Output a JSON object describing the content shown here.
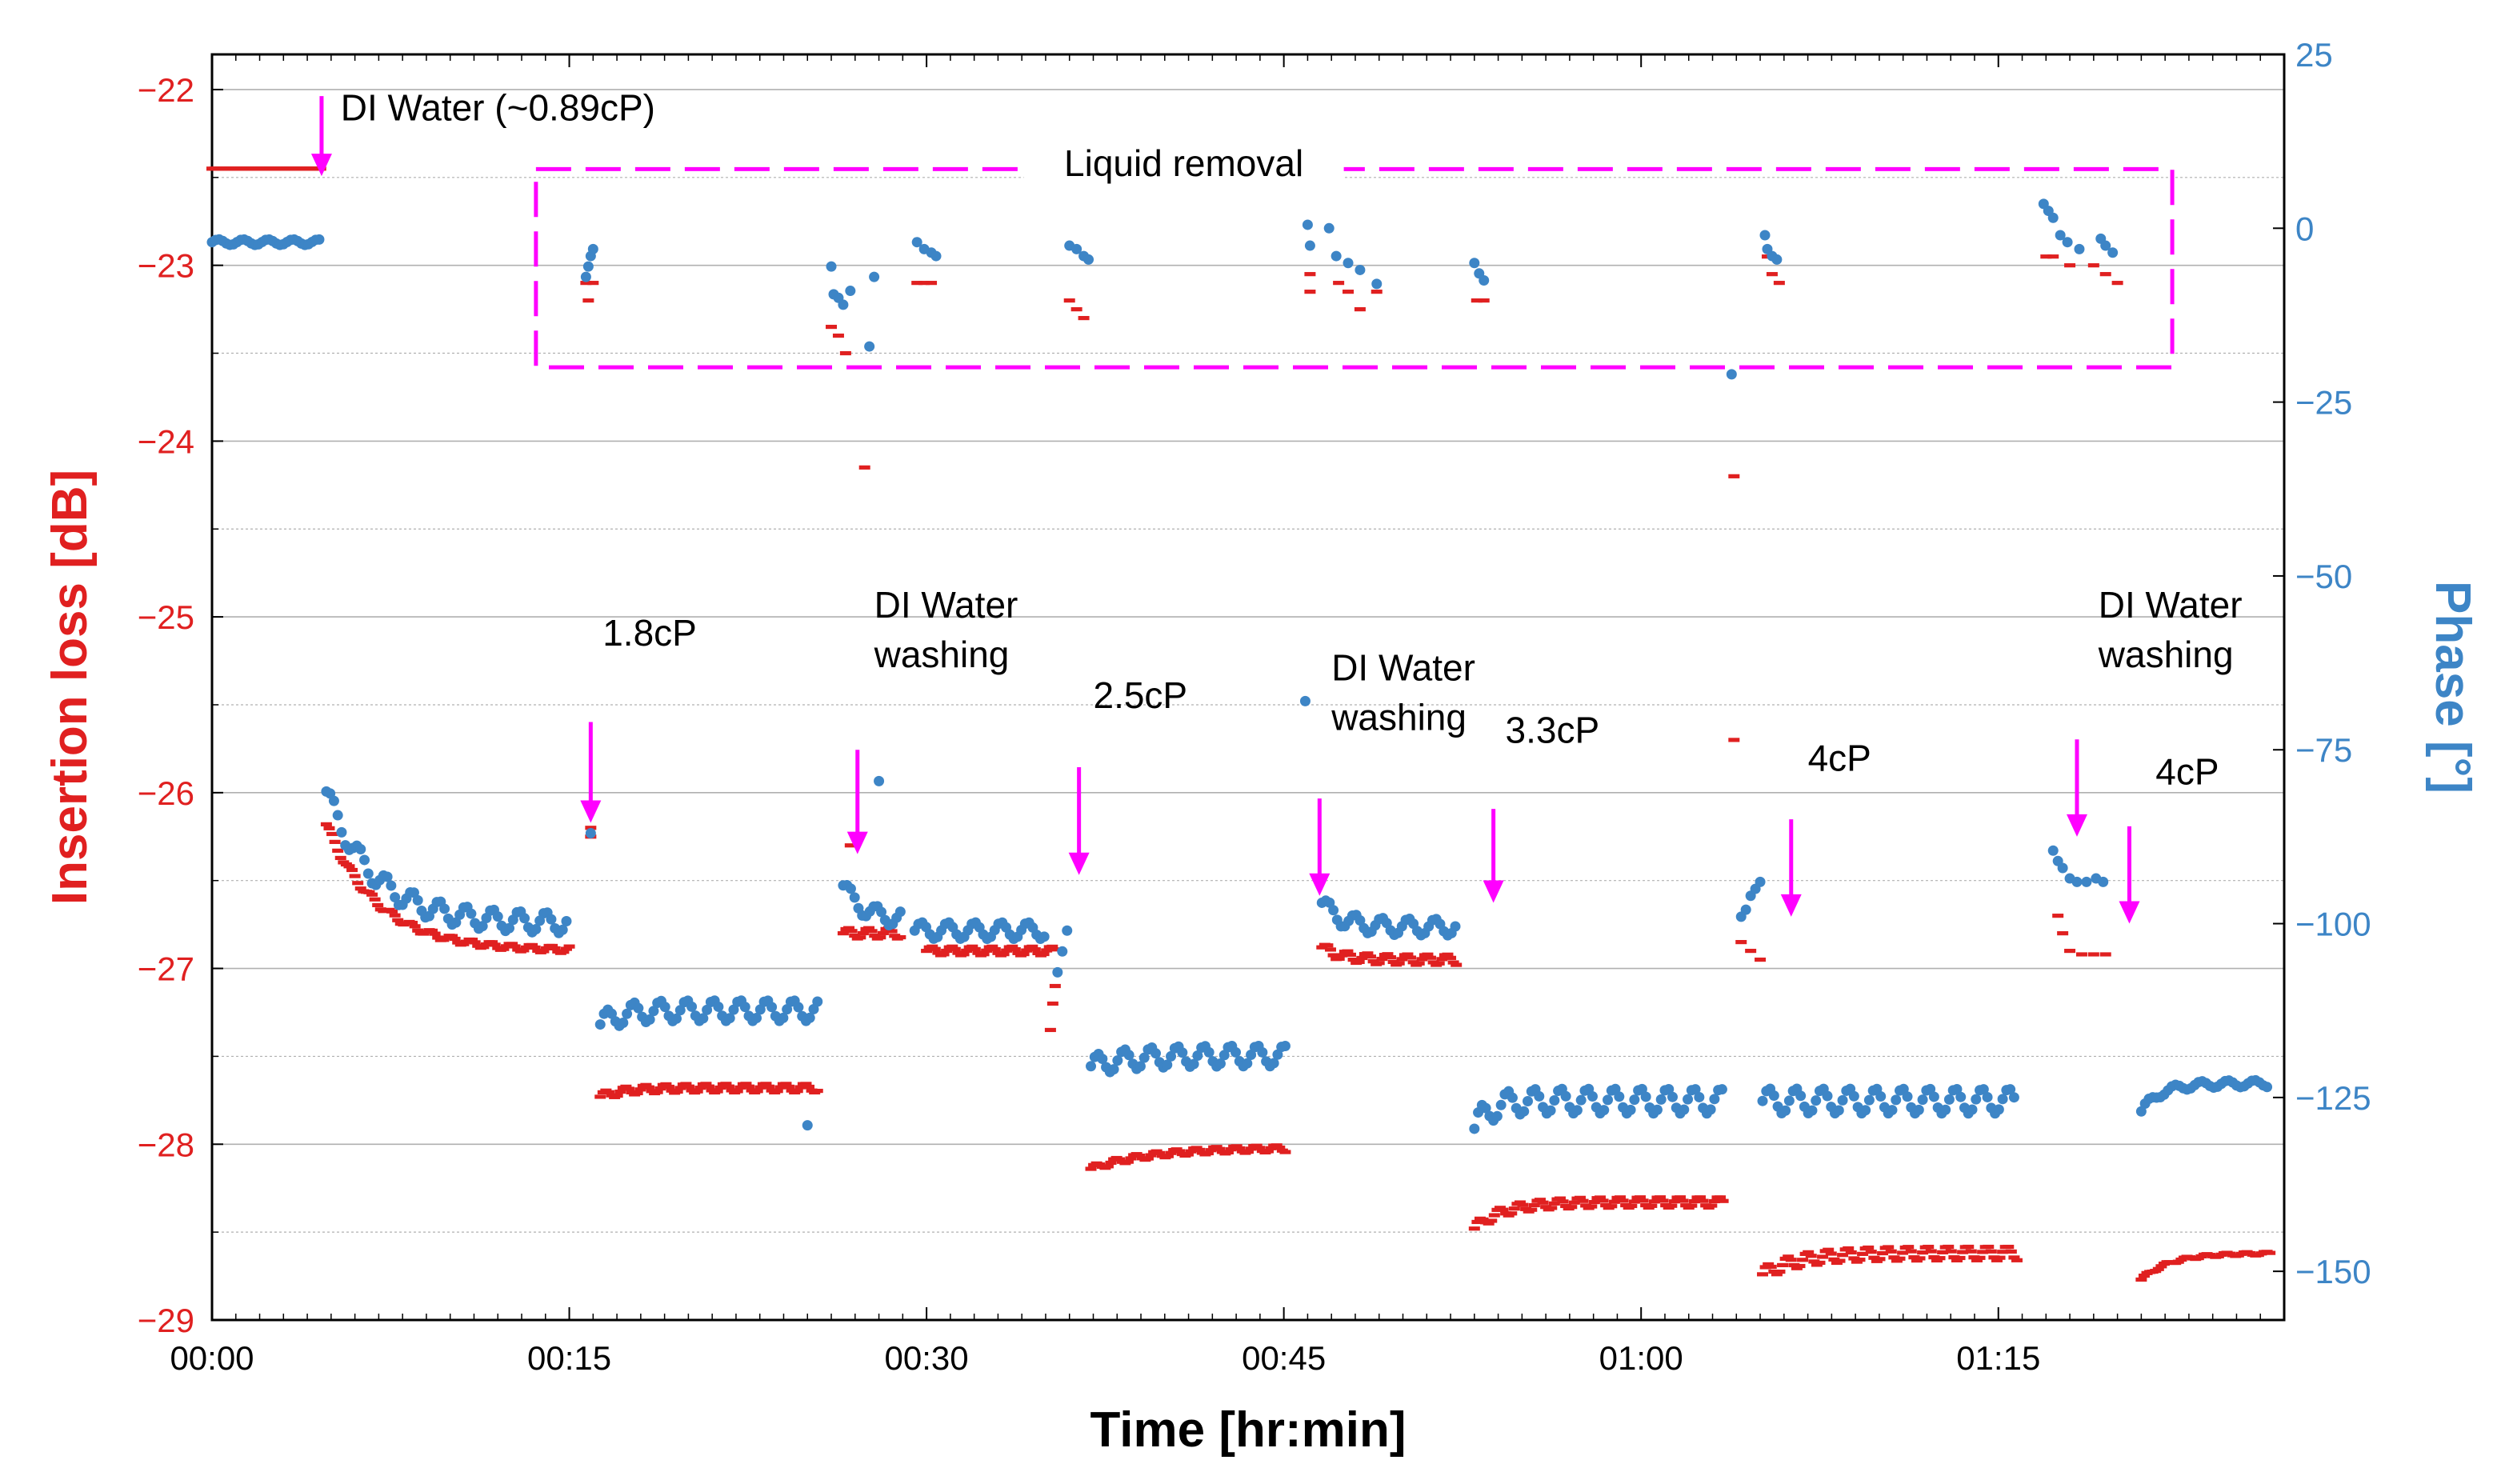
{
  "colors": {
    "insertion_loss": "#e02020",
    "phase": "#3d85c6",
    "annotation": "#ff00ff",
    "grid": "#b0b0b0",
    "axis": "#000000"
  },
  "chart_data": {
    "type": "scatter",
    "xlabel": "Time [hr:min]",
    "ylabel_left": "Insertion loss [dB]",
    "ylabel_right": "Phase [°]",
    "x_unit": "minutes",
    "xlim": [
      0,
      87
    ],
    "ylim_left": [
      -29,
      -21.8
    ],
    "ylim_right": [
      -157,
      25
    ],
    "x_tick_values": [
      0,
      15,
      30,
      45,
      60,
      75
    ],
    "x_tick_labels": [
      "00:00",
      "00:15",
      "00:30",
      "00:45",
      "01:00",
      "01:15"
    ],
    "y_left_tick_values": [
      -22,
      -23,
      -24,
      -25,
      -26,
      -27,
      -28,
      -29
    ],
    "y_left_tick_labels": [
      "−22",
      "−23",
      "−24",
      "−25",
      "−26",
      "−27",
      "−28",
      "−29"
    ],
    "y_right_tick_values": [
      25,
      0,
      -25,
      -50,
      -75,
      -100,
      -125,
      -150
    ],
    "y_right_tick_labels": [
      "25",
      "0",
      "−25",
      "−50",
      "−75",
      "−100",
      "−125",
      "−150"
    ],
    "grid": "horizontal",
    "series": [
      {
        "name": "Insertion loss",
        "axis": "left",
        "marker": "dash",
        "segments": [
          {
            "x0": 0.0,
            "x1": 4.6,
            "base": -22.45,
            "ripple": 0.0,
            "step": 0.12
          },
          {
            "x0": 4.8,
            "x1": 15.0,
            "base": -26.9,
            "decay": 0.72,
            "tau": 2.2,
            "ripple": 0.02,
            "step": 0.12
          },
          {
            "x0": 16.3,
            "x1": 25.5,
            "base": -27.68,
            "decay": -0.05,
            "tau": 1.0,
            "ripple": 0.025,
            "step": 0.12
          },
          {
            "x0": 26.5,
            "x1": 29.0,
            "base": -26.8,
            "decay": 0.0,
            "tau": 1.0,
            "ripple": 0.03,
            "step": 0.12
          },
          {
            "x0": 30.0,
            "x1": 35.4,
            "base": -26.9,
            "decay": 0.0,
            "tau": 1.0,
            "ripple": 0.025,
            "step": 0.12
          },
          {
            "x0": 36.9,
            "x1": 45.1,
            "base": -28.02,
            "decay": -0.12,
            "tau": 2.5,
            "ripple": 0.02,
            "step": 0.12
          },
          {
            "x0": 46.6,
            "x1": 52.3,
            "base": -26.95,
            "decay": 0.07,
            "tau": 0.8,
            "ripple": 0.03,
            "step": 0.12
          },
          {
            "x0": 53.0,
            "x1": 63.5,
            "base": -28.33,
            "decay": -0.15,
            "tau": 1.2,
            "ripple": 0.03,
            "step": 0.12
          },
          {
            "x0": 65.1,
            "x1": 75.8,
            "base": -28.62,
            "decay": -0.12,
            "tau": 1.5,
            "ripple": 0.04,
            "step": 0.12
          },
          {
            "x0": 81.0,
            "x1": 86.4,
            "base": -28.62,
            "decay": -0.15,
            "tau": 1.2,
            "ripple": 0.01,
            "step": 0.12
          }
        ],
        "points": [
          {
            "x": 15.7,
            "y": -23.1
          },
          {
            "x": 15.8,
            "y": -23.2
          },
          {
            "x": 16.0,
            "y": -23.1
          },
          {
            "x": 15.9,
            "y": -26.2
          },
          {
            "x": 15.9,
            "y": -26.25
          },
          {
            "x": 26.0,
            "y": -23.35
          },
          {
            "x": 26.3,
            "y": -23.4
          },
          {
            "x": 26.6,
            "y": -23.5
          },
          {
            "x": 26.8,
            "y": -26.3
          },
          {
            "x": 27.4,
            "y": -24.15
          },
          {
            "x": 29.6,
            "y": -23.1
          },
          {
            "x": 29.9,
            "y": -23.1
          },
          {
            "x": 30.2,
            "y": -23.1
          },
          {
            "x": 35.4,
            "y": -27.1
          },
          {
            "x": 35.3,
            "y": -27.2
          },
          {
            "x": 35.2,
            "y": -27.35
          },
          {
            "x": 36.0,
            "y": -23.2
          },
          {
            "x": 36.3,
            "y": -23.25
          },
          {
            "x": 36.6,
            "y": -23.3
          },
          {
            "x": 46.1,
            "y": -23.05
          },
          {
            "x": 46.1,
            "y": -23.15
          },
          {
            "x": 47.3,
            "y": -23.1
          },
          {
            "x": 47.7,
            "y": -23.15
          },
          {
            "x": 48.2,
            "y": -23.25
          },
          {
            "x": 48.9,
            "y": -23.15
          },
          {
            "x": 53.1,
            "y": -23.2
          },
          {
            "x": 53.4,
            "y": -23.2
          },
          {
            "x": 63.9,
            "y": -24.2
          },
          {
            "x": 63.9,
            "y": -25.7
          },
          {
            "x": 64.2,
            "y": -26.85
          },
          {
            "x": 64.6,
            "y": -26.9
          },
          {
            "x": 65.0,
            "y": -26.95
          },
          {
            "x": 65.3,
            "y": -22.95
          },
          {
            "x": 65.5,
            "y": -23.05
          },
          {
            "x": 65.8,
            "y": -23.1
          },
          {
            "x": 77.0,
            "y": -22.95
          },
          {
            "x": 77.3,
            "y": -22.95
          },
          {
            "x": 78.0,
            "y": -23.0
          },
          {
            "x": 79.0,
            "y": -23.0
          },
          {
            "x": 79.5,
            "y": -23.05
          },
          {
            "x": 80.0,
            "y": -23.1
          },
          {
            "x": 77.5,
            "y": -26.7
          },
          {
            "x": 77.7,
            "y": -26.8
          },
          {
            "x": 78.0,
            "y": -26.9
          },
          {
            "x": 78.5,
            "y": -26.92
          },
          {
            "x": 79.0,
            "y": -26.92
          },
          {
            "x": 79.5,
            "y": -26.92
          }
        ]
      },
      {
        "name": "Phase",
        "axis": "right",
        "marker": "dot",
        "segments": [
          {
            "x0": 0.0,
            "x1": 4.6,
            "base": -2.0,
            "ripple": 0.4,
            "step": 0.15
          },
          {
            "x0": 4.8,
            "x1": 15.0,
            "base": -100.0,
            "decay": 19.0,
            "tau": 2.0,
            "ripple": 1.5,
            "step": 0.16
          },
          {
            "x0": 16.3,
            "x1": 25.5,
            "base": -112.5,
            "decay": -2.0,
            "tau": 0.8,
            "ripple": 1.5,
            "step": 0.16
          },
          {
            "x0": 26.5,
            "x1": 29.0,
            "base": -99.5,
            "decay": 5.0,
            "tau": 0.8,
            "ripple": 1.2,
            "step": 0.16
          },
          {
            "x0": 29.5,
            "x1": 35.0,
            "base": -101.0,
            "decay": 0.0,
            "tau": 1.0,
            "ripple": 1.2,
            "step": 0.16
          },
          {
            "x0": 36.9,
            "x1": 45.1,
            "base": -119.0,
            "decay": -1.5,
            "tau": 1.5,
            "ripple": 1.5,
            "step": 0.16
          },
          {
            "x0": 46.6,
            "x1": 52.3,
            "base": -100.5,
            "decay": 3.5,
            "tau": 0.8,
            "ripple": 1.2,
            "step": 0.16
          },
          {
            "x0": 53.0,
            "x1": 63.5,
            "base": -125.5,
            "decay": -4.0,
            "tau": 0.6,
            "ripple": 1.8,
            "step": 0.16
          },
          {
            "x0": 65.1,
            "x1": 75.8,
            "base": -125.5,
            "decay": 0.0,
            "tau": 1.0,
            "ripple": 1.8,
            "step": 0.16
          },
          {
            "x0": 81.0,
            "x1": 86.4,
            "base": -123.0,
            "decay": -4.0,
            "tau": 0.8,
            "ripple": 0.5,
            "step": 0.16
          }
        ],
        "points": [
          {
            "x": 15.9,
            "y": -87.0
          },
          {
            "x": 25.0,
            "y": -129.0
          },
          {
            "x": 35.5,
            "y": -107.0
          },
          {
            "x": 35.7,
            "y": -104.0
          },
          {
            "x": 35.9,
            "y": -101.0
          },
          {
            "x": 15.7,
            "y": -7.0
          },
          {
            "x": 15.8,
            "y": -5.5
          },
          {
            "x": 15.9,
            "y": -4.0
          },
          {
            "x": 16.0,
            "y": -3.0
          },
          {
            "x": 26.0,
            "y": -5.5
          },
          {
            "x": 26.1,
            "y": -9.5
          },
          {
            "x": 26.3,
            "y": -10.0
          },
          {
            "x": 26.5,
            "y": -11.0
          },
          {
            "x": 26.8,
            "y": -9.0
          },
          {
            "x": 27.6,
            "y": -17.0
          },
          {
            "x": 27.8,
            "y": -7.0
          },
          {
            "x": 29.6,
            "y": -2.0
          },
          {
            "x": 29.9,
            "y": -3.0
          },
          {
            "x": 30.2,
            "y": -3.5
          },
          {
            "x": 30.4,
            "y": -4.0
          },
          {
            "x": 28.0,
            "y": -79.5
          },
          {
            "x": 36.0,
            "y": -2.5
          },
          {
            "x": 36.3,
            "y": -3.0
          },
          {
            "x": 36.6,
            "y": -4.0
          },
          {
            "x": 36.8,
            "y": -4.5
          },
          {
            "x": 45.9,
            "y": -68.0
          },
          {
            "x": 46.0,
            "y": 0.5
          },
          {
            "x": 46.1,
            "y": -2.5
          },
          {
            "x": 46.9,
            "y": 0.0
          },
          {
            "x": 47.2,
            "y": -4.0
          },
          {
            "x": 47.7,
            "y": -5.0
          },
          {
            "x": 48.2,
            "y": -6.0
          },
          {
            "x": 48.9,
            "y": -8.0
          },
          {
            "x": 53.0,
            "y": -5.0
          },
          {
            "x": 53.2,
            "y": -6.5
          },
          {
            "x": 53.4,
            "y": -7.5
          },
          {
            "x": 63.8,
            "y": -21.0
          },
          {
            "x": 64.2,
            "y": -99.0
          },
          {
            "x": 64.4,
            "y": -98.0
          },
          {
            "x": 64.6,
            "y": -96.0
          },
          {
            "x": 64.8,
            "y": -95.0
          },
          {
            "x": 65.0,
            "y": -94.0
          },
          {
            "x": 65.2,
            "y": -1.0
          },
          {
            "x": 65.3,
            "y": -3.0
          },
          {
            "x": 65.5,
            "y": -4.0
          },
          {
            "x": 65.7,
            "y": -4.5
          },
          {
            "x": 76.9,
            "y": 3.5
          },
          {
            "x": 77.1,
            "y": 2.5
          },
          {
            "x": 77.3,
            "y": 1.5
          },
          {
            "x": 77.6,
            "y": -1.0
          },
          {
            "x": 77.9,
            "y": -2.0
          },
          {
            "x": 78.4,
            "y": -3.0
          },
          {
            "x": 79.3,
            "y": -1.5
          },
          {
            "x": 79.5,
            "y": -2.5
          },
          {
            "x": 79.8,
            "y": -3.5
          },
          {
            "x": 77.3,
            "y": -89.5
          },
          {
            "x": 77.5,
            "y": -91.0
          },
          {
            "x": 77.7,
            "y": -92.0
          },
          {
            "x": 78.0,
            "y": -93.5
          },
          {
            "x": 78.3,
            "y": -94.0
          },
          {
            "x": 78.7,
            "y": -94.0
          },
          {
            "x": 79.1,
            "y": -93.5
          },
          {
            "x": 79.4,
            "y": -94.0
          }
        ]
      }
    ],
    "annotations": {
      "texts": [
        {
          "id": "di_water",
          "lines": [
            "DI Water (~0.89cP)"
          ],
          "x": 5.4,
          "y_right": 15.5
        },
        {
          "id": "liquid_removal",
          "lines": [
            "Liquid removal"
          ],
          "x": 40.8,
          "y_right": 7.5
        },
        {
          "id": "cp_1_8",
          "lines": [
            "1.8cP"
          ],
          "x": 16.4,
          "y_right": -60.0
        },
        {
          "id": "washing_1",
          "lines": [
            "DI Water",
            "washing"
          ],
          "x": 27.8,
          "y_right": -56.0
        },
        {
          "id": "cp_2_5",
          "lines": [
            "2.5cP"
          ],
          "x": 37.0,
          "y_right": -69.0
        },
        {
          "id": "washing_2",
          "lines": [
            "DI Water",
            "washing"
          ],
          "x": 47.0,
          "y_right": -65.0
        },
        {
          "id": "cp_3_3",
          "lines": [
            "3.3cP"
          ],
          "x": 54.3,
          "y_right": -74.0
        },
        {
          "id": "cp_4_a",
          "lines": [
            "4cP"
          ],
          "x": 67.0,
          "y_right": -78.0
        },
        {
          "id": "washing_3",
          "lines": [
            "DI Water",
            "washing"
          ],
          "x": 79.2,
          "y_right": -56.0
        },
        {
          "id": "cp_4_b",
          "lines": [
            "4cP"
          ],
          "x": 81.6,
          "y_right": -80.0
        }
      ],
      "arrows": [
        {
          "x": 4.6,
          "y_right_from": 19.0,
          "y_right_to": 7.5
        },
        {
          "x": 15.9,
          "y_right_from": -71.0,
          "y_right_to": -85.5
        },
        {
          "x": 27.1,
          "y_right_from": -75.0,
          "y_right_to": -90.0
        },
        {
          "x": 36.4,
          "y_right_from": -77.5,
          "y_right_to": -93.0
        },
        {
          "x": 46.5,
          "y_right_from": -82.0,
          "y_right_to": -96.0
        },
        {
          "x": 53.8,
          "y_right_from": -83.5,
          "y_right_to": -97.0
        },
        {
          "x": 66.3,
          "y_right_from": -85.0,
          "y_right_to": -99.0
        },
        {
          "x": 78.3,
          "y_right_from": -73.5,
          "y_right_to": -87.5
        },
        {
          "x": 80.5,
          "y_right_from": -86.0,
          "y_right_to": -100.0
        }
      ],
      "region": {
        "label_id": "liquid_removal",
        "x0": 13.6,
        "x1": 82.3,
        "y_right_top": 8.5,
        "y_right_bottom": -20.0
      }
    }
  }
}
